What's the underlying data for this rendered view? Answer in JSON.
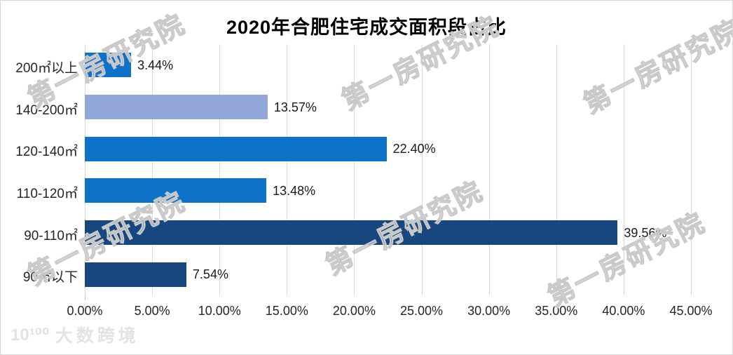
{
  "title": "2020年合肥住宅成交面积段占比",
  "watermark": {
    "text": "第一房研究院"
  },
  "logo": {
    "icon_text": "10¹⁰⁰",
    "brand_text": "大数跨境"
  },
  "colors": {
    "grid": "#d9d9d9",
    "background": "#ffffff",
    "axis_text": "#262626",
    "default_bar": "#0e73c8",
    "light_bar": "#92a7d9",
    "dark_bar": "#17477e"
  },
  "chart_data": {
    "type": "bar",
    "orientation": "horizontal",
    "title": "2020年合肥住宅成交面积段占比",
    "categories": [
      "200㎡以上",
      "140-200㎡",
      "120-140㎡",
      "110-120㎡",
      "90-110㎡",
      "90㎡以下"
    ],
    "values": [
      3.44,
      13.57,
      22.4,
      13.48,
      39.56,
      7.54
    ],
    "value_labels": [
      "3.44%",
      "13.57%",
      "22.40%",
      "13.48%",
      "39.56%",
      "7.54%"
    ],
    "bar_colors": [
      "#0e73c8",
      "#92a7d9",
      "#0e73c8",
      "#0e73c8",
      "#17477e",
      "#17477e"
    ],
    "xlabel": "",
    "ylabel": "",
    "xlim": [
      0,
      45
    ],
    "x_ticks": [
      "0.00%",
      "5.00%",
      "10.00%",
      "15.00%",
      "20.00%",
      "25.00%",
      "30.00%",
      "35.00%",
      "40.00%",
      "45.00%"
    ],
    "x_tick_values": [
      0,
      5,
      10,
      15,
      20,
      25,
      30,
      35,
      40,
      45
    ],
    "grid": true,
    "legend": false
  }
}
